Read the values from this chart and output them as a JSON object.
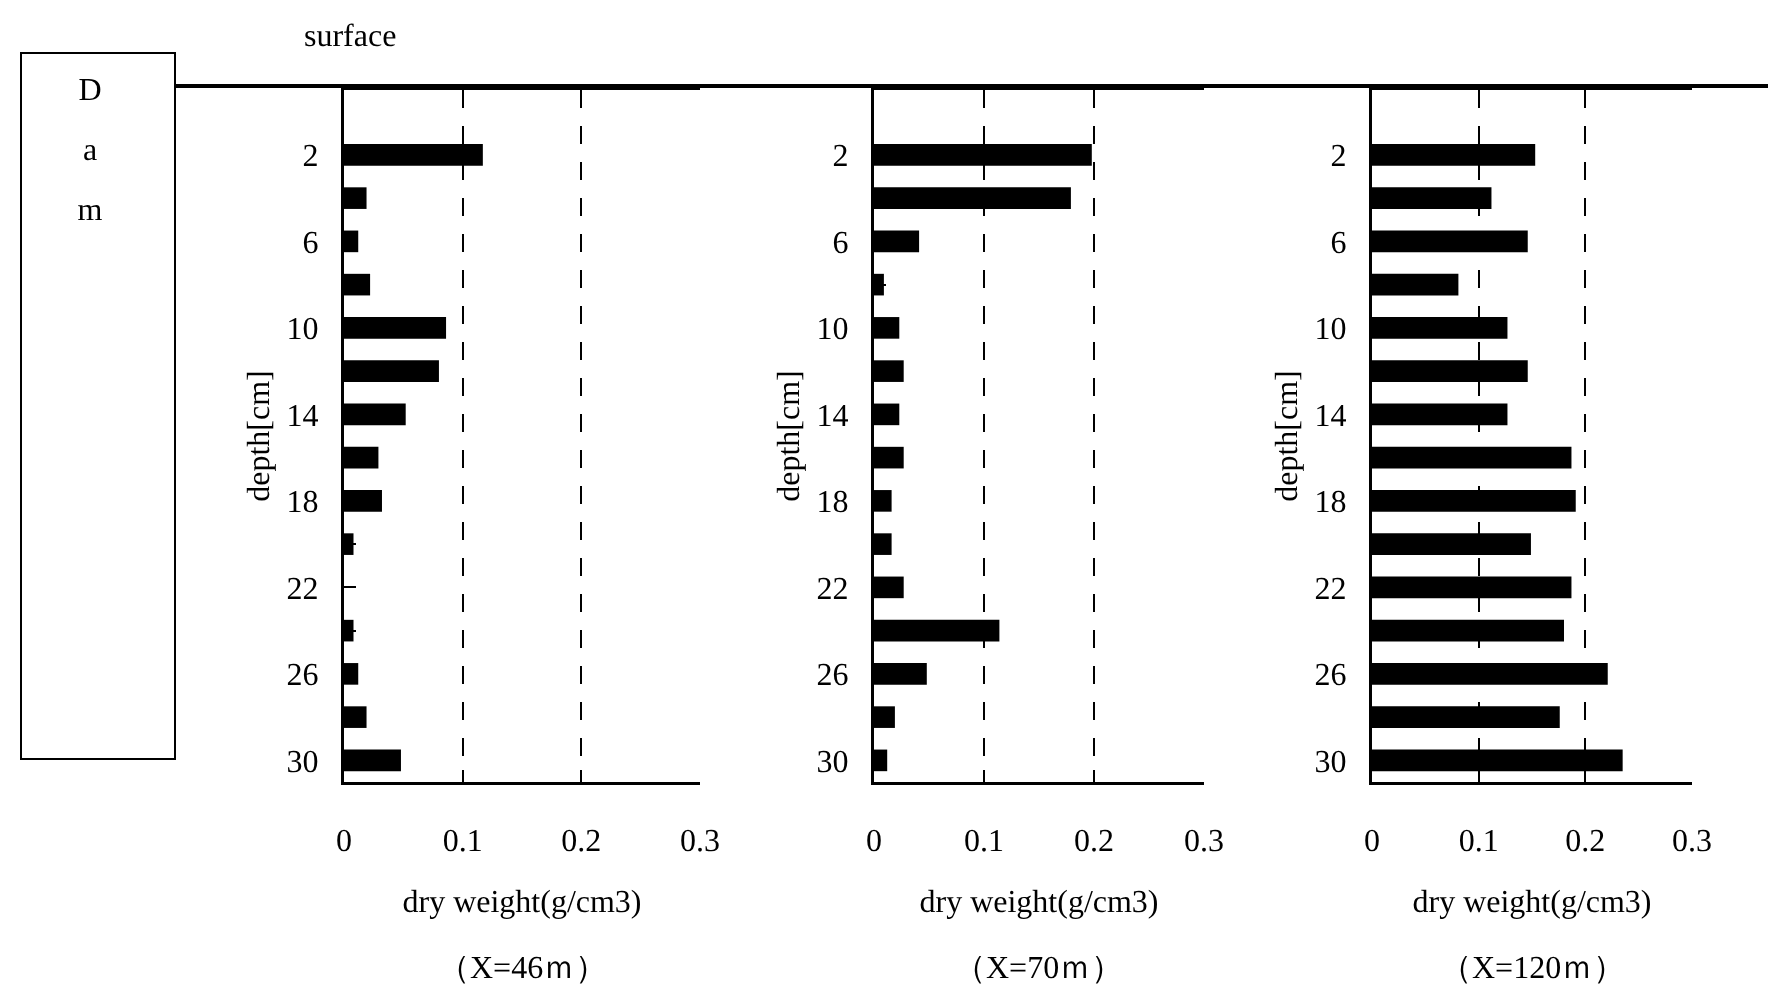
{
  "chart_data": [
    {
      "type": "bar",
      "orientation": "horizontal",
      "categories": [
        "2",
        null,
        "6",
        null,
        "10",
        null,
        "14",
        null,
        "18",
        null,
        "22",
        null,
        "26",
        null,
        "30"
      ],
      "values": [
        0.117,
        0.019,
        0.012,
        0.022,
        0.086,
        0.08,
        0.052,
        0.029,
        0.032,
        0.008,
        0,
        0.008,
        0.012,
        0.019,
        0.048
      ],
      "color": "#000000",
      "xlim": [
        0,
        0.3
      ],
      "xticks": [
        0,
        0.1,
        0.2,
        0.3
      ],
      "grid": "x",
      "xlabel": "dry weight(g/cm3)",
      "ylabel": "depth[cm]",
      "annotations": [
        "（X=46ｍ）",
        "surface",
        "Dam"
      ]
    },
    {
      "type": "bar",
      "orientation": "horizontal",
      "categories": [
        "2",
        null,
        "6",
        null,
        "10",
        null,
        "14",
        null,
        "18",
        null,
        "22",
        null,
        "26",
        null,
        "30"
      ],
      "values": [
        0.198,
        0.179,
        0.041,
        0.009,
        0.023,
        0.027,
        0.023,
        0.027,
        0.016,
        0.016,
        0.027,
        0.114,
        0.048,
        0.019,
        0.012
      ],
      "color": "#000000",
      "xlim": [
        0,
        0.3
      ],
      "xticks": [
        0,
        0.1,
        0.2,
        0.3
      ],
      "grid": "x",
      "xlabel": "dry weight(g/cm3)",
      "ylabel": "depth[cm]",
      "annotations": [
        "（X=70ｍ）"
      ]
    },
    {
      "type": "bar",
      "orientation": "horizontal",
      "categories": [
        "2",
        null,
        "6",
        null,
        "10",
        null,
        "14",
        null,
        "18",
        null,
        "22",
        null,
        "26",
        null,
        "30"
      ],
      "values": [
        0.153,
        0.112,
        0.146,
        0.081,
        0.127,
        0.146,
        0.127,
        0.187,
        0.191,
        0.149,
        0.187,
        0.18,
        0.221,
        0.176,
        0.235
      ],
      "color": "#000000",
      "xlim": [
        0,
        0.3
      ],
      "xticks": [
        0,
        0.1,
        0.2,
        0.3
      ],
      "grid": "x",
      "xlabel": "dry weight(g/cm3)",
      "ylabel": "depth[cm]",
      "annotations": [
        "（X=120ｍ）"
      ]
    }
  ]
}
